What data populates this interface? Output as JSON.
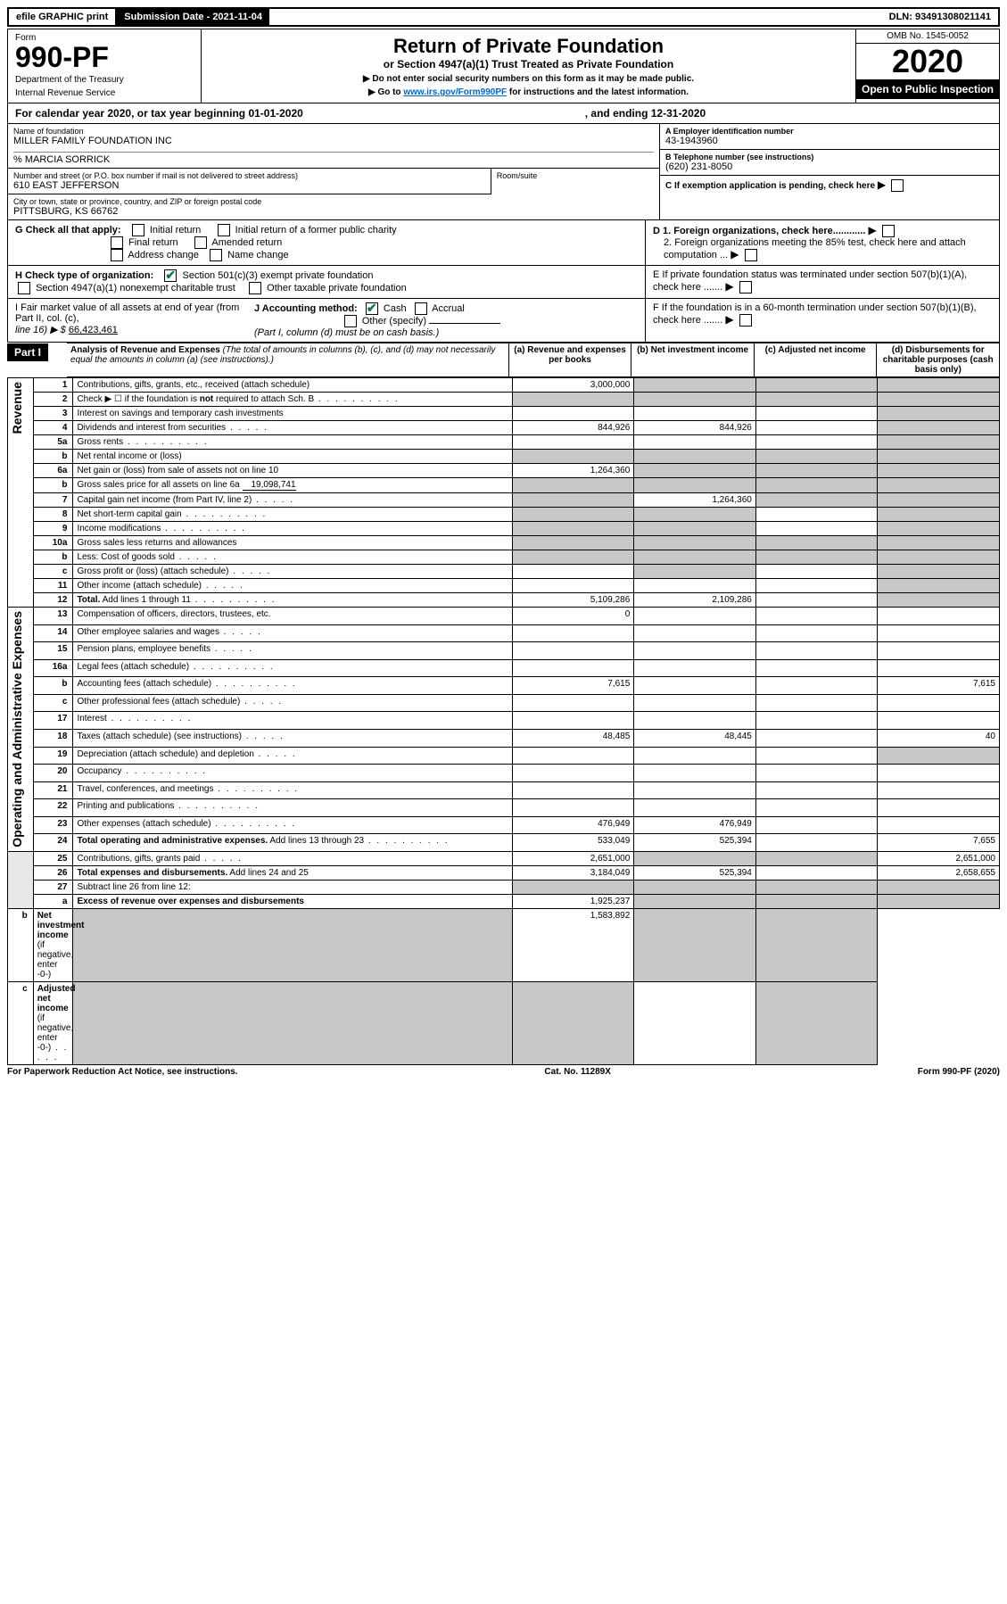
{
  "topbar": {
    "efile": "efile GRAPHIC print",
    "submission_label": "Submission Date - 2021-11-04",
    "dln": "DLN: 93491308021141"
  },
  "header": {
    "form_label": "Form",
    "form_number": "990-PF",
    "dept1": "Department of the Treasury",
    "dept2": "Internal Revenue Service",
    "title": "Return of Private Foundation",
    "subtitle": "or Section 4947(a)(1) Trust Treated as Private Foundation",
    "note1": "▶ Do not enter social security numbers on this form as it may be made public.",
    "note2_pre": "▶ Go to ",
    "note2_link": "www.irs.gov/Form990PF",
    "note2_post": " for instructions and the latest information.",
    "omb": "OMB No. 1545-0052",
    "year": "2020",
    "inspection": "Open to Public Inspection"
  },
  "cy": {
    "text_a": "For calendar year 2020, or tax year beginning 01-01-2020",
    "text_b": ", and ending 12-31-2020"
  },
  "info": {
    "name_label": "Name of foundation",
    "name": "MILLER FAMILY FOUNDATION INC",
    "co": "% MARCIA SORRICK",
    "addr_label": "Number and street (or P.O. box number if mail is not delivered to street address)",
    "addr": "610 EAST JEFFERSON",
    "room_label": "Room/suite",
    "city_label": "City or town, state or province, country, and ZIP or foreign postal code",
    "city": "PITTSBURG, KS  66762",
    "ein_label": "A Employer identification number",
    "ein": "43-1943960",
    "phone_label": "B Telephone number (see instructions)",
    "phone": "(620) 231-8050",
    "c_label": "C If exemption application is pending, check here",
    "d1": "D 1. Foreign organizations, check here............",
    "d2": "2. Foreign organizations meeting the 85% test, check here and attach computation ...",
    "e": "E  If private foundation status was terminated under section 507(b)(1)(A), check here .......",
    "f": "F  If the foundation is in a 60-month termination under section 507(b)(1)(B), check here ......."
  },
  "g": {
    "label": "G Check all that apply:",
    "o1": "Initial return",
    "o2": "Initial return of a former public charity",
    "o3": "Final return",
    "o4": "Amended return",
    "o5": "Address change",
    "o6": "Name change"
  },
  "h": {
    "label": "H Check type of organization:",
    "o1": "Section 501(c)(3) exempt private foundation",
    "o2": "Section 4947(a)(1) nonexempt charitable trust",
    "o3": "Other taxable private foundation"
  },
  "i": {
    "label_a": "I Fair market value of all assets at end of year (from Part II, col. (c),",
    "label_b": "line 16) ▶ $",
    "value": "66,423,461"
  },
  "j": {
    "label": "J Accounting method:",
    "o1": "Cash",
    "o2": "Accrual",
    "o3": "Other (specify)",
    "note": "(Part I, column (d) must be on cash basis.)"
  },
  "part1": {
    "label": "Part I",
    "title": "Analysis of Revenue and Expenses",
    "sub": "(The total of amounts in columns (b), (c), and (d) may not necessarily equal the amounts in column (a) (see instructions).)",
    "col_a": "(a)   Revenue and expenses per books",
    "col_b": "(b)   Net investment income",
    "col_c": "(c)   Adjusted net income",
    "col_d": "(d)   Disbursements for charitable purposes (cash basis only)"
  },
  "sections": {
    "revenue": "Revenue",
    "opex": "Operating and Administrative Expenses"
  },
  "rows": [
    {
      "n": "1",
      "t": "Contributions, gifts, grants, etc., received (attach schedule)",
      "a": "3,000,000",
      "b": "",
      "c": "",
      "d": "",
      "bsh": true,
      "csh": true,
      "dsh": true
    },
    {
      "n": "2",
      "t": "Check ▶ ☐ if the foundation is <b>not</b> required to attach Sch. B",
      "dots": true,
      "a": "",
      "b": "",
      "c": "",
      "d": "",
      "ash": true,
      "bsh": true,
      "csh": true,
      "dsh": true
    },
    {
      "n": "3",
      "t": "Interest on savings and temporary cash investments",
      "a": "",
      "b": "",
      "c": "",
      "d": "",
      "dsh": true
    },
    {
      "n": "4",
      "t": "Dividends and interest from securities",
      "dots": "s",
      "a": "844,926",
      "b": "844,926",
      "c": "",
      "d": "",
      "dsh": true
    },
    {
      "n": "5a",
      "t": "Gross rents",
      "dots": true,
      "a": "",
      "b": "",
      "c": "",
      "d": "",
      "dsh": true
    },
    {
      "n": "b",
      "t": "Net rental income or (loss)",
      "a": "",
      "b": "",
      "c": "",
      "d": "",
      "ash": true,
      "bsh": true,
      "csh": true,
      "dsh": true
    },
    {
      "n": "6a",
      "t": "Net gain or (loss) from sale of assets not on line 10",
      "a": "1,264,360",
      "b": "",
      "c": "",
      "d": "",
      "bsh": true,
      "csh": true,
      "dsh": true
    },
    {
      "n": "b",
      "t": "Gross sales price for all assets on line 6a",
      "inline": "19,098,741",
      "a": "",
      "b": "",
      "c": "",
      "d": "",
      "ash": true,
      "bsh": true,
      "csh": true,
      "dsh": true
    },
    {
      "n": "7",
      "t": "Capital gain net income (from Part IV, line 2)",
      "dots": "s",
      "a": "",
      "b": "1,264,360",
      "c": "",
      "d": "",
      "ash": true,
      "csh": true,
      "dsh": true
    },
    {
      "n": "8",
      "t": "Net short-term capital gain",
      "dots": true,
      "a": "",
      "b": "",
      "c": "",
      "d": "",
      "ash": true,
      "bsh": true,
      "dsh": true
    },
    {
      "n": "9",
      "t": "Income modifications",
      "dots": true,
      "a": "",
      "b": "",
      "c": "",
      "d": "",
      "ash": true,
      "bsh": true,
      "dsh": true
    },
    {
      "n": "10a",
      "t": "Gross sales less returns and allowances",
      "a": "",
      "b": "",
      "c": "",
      "d": "",
      "ash": true,
      "bsh": true,
      "csh": true,
      "dsh": true
    },
    {
      "n": "b",
      "t": "Less: Cost of goods sold",
      "dots": "s",
      "a": "",
      "b": "",
      "c": "",
      "d": "",
      "ash": true,
      "bsh": true,
      "csh": true,
      "dsh": true
    },
    {
      "n": "c",
      "t": "Gross profit or (loss) (attach schedule)",
      "dots": "s",
      "a": "",
      "b": "",
      "c": "",
      "d": "",
      "bsh": true,
      "dsh": true
    },
    {
      "n": "11",
      "t": "Other income (attach schedule)",
      "dots": "s",
      "a": "",
      "b": "",
      "c": "",
      "d": "",
      "dsh": true
    },
    {
      "n": "12",
      "t": "<b>Total.</b> Add lines 1 through 11",
      "dots": true,
      "a": "5,109,286",
      "b": "2,109,286",
      "c": "",
      "d": "",
      "dsh": true
    },
    {
      "n": "13",
      "t": "Compensation of officers, directors, trustees, etc.",
      "a": "0",
      "b": "",
      "c": "",
      "d": ""
    },
    {
      "n": "14",
      "t": "Other employee salaries and wages",
      "dots": "s",
      "a": "",
      "b": "",
      "c": "",
      "d": ""
    },
    {
      "n": "15",
      "t": "Pension plans, employee benefits",
      "dots": "s",
      "a": "",
      "b": "",
      "c": "",
      "d": ""
    },
    {
      "n": "16a",
      "t": "Legal fees (attach schedule)",
      "dots": true,
      "a": "",
      "b": "",
      "c": "",
      "d": ""
    },
    {
      "n": "b",
      "t": "Accounting fees (attach schedule)",
      "dots": true,
      "a": "7,615",
      "b": "",
      "c": "",
      "d": "7,615"
    },
    {
      "n": "c",
      "t": "Other professional fees (attach schedule)",
      "dots": "s",
      "a": "",
      "b": "",
      "c": "",
      "d": ""
    },
    {
      "n": "17",
      "t": "Interest",
      "dots": true,
      "a": "",
      "b": "",
      "c": "",
      "d": ""
    },
    {
      "n": "18",
      "t": "Taxes (attach schedule) (see instructions)",
      "dots": "s",
      "a": "48,485",
      "b": "48,445",
      "c": "",
      "d": "40"
    },
    {
      "n": "19",
      "t": "Depreciation (attach schedule) and depletion",
      "dots": "s",
      "a": "",
      "b": "",
      "c": "",
      "d": "",
      "dsh": true
    },
    {
      "n": "20",
      "t": "Occupancy",
      "dots": true,
      "a": "",
      "b": "",
      "c": "",
      "d": ""
    },
    {
      "n": "21",
      "t": "Travel, conferences, and meetings",
      "dots": true,
      "a": "",
      "b": "",
      "c": "",
      "d": ""
    },
    {
      "n": "22",
      "t": "Printing and publications",
      "dots": true,
      "a": "",
      "b": "",
      "c": "",
      "d": ""
    },
    {
      "n": "23",
      "t": "Other expenses (attach schedule)",
      "dots": true,
      "a": "476,949",
      "b": "476,949",
      "c": "",
      "d": ""
    },
    {
      "n": "24",
      "t": "<b>Total operating and administrative expenses.</b> Add lines 13 through 23",
      "dots": true,
      "a": "533,049",
      "b": "525,394",
      "c": "",
      "d": "7,655"
    },
    {
      "n": "25",
      "t": "Contributions, gifts, grants paid",
      "dots": "s",
      "a": "2,651,000",
      "b": "",
      "c": "",
      "d": "2,651,000",
      "bsh": true,
      "csh": true
    },
    {
      "n": "26",
      "t": "<b>Total expenses and disbursements.</b> Add lines 24 and 25",
      "a": "3,184,049",
      "b": "525,394",
      "c": "",
      "d": "2,658,655"
    },
    {
      "n": "27",
      "t": "Subtract line 26 from line 12:",
      "a": "",
      "b": "",
      "c": "",
      "d": "",
      "ash": true,
      "bsh": true,
      "csh": true,
      "dsh": true
    },
    {
      "n": "a",
      "t": "<b>Excess of revenue over expenses and disbursements</b>",
      "a": "1,925,237",
      "b": "",
      "c": "",
      "d": "",
      "bsh": true,
      "csh": true,
      "dsh": true
    },
    {
      "n": "b",
      "t": "<b>Net investment income</b> (if negative, enter -0-)",
      "a": "",
      "b": "1,583,892",
      "c": "",
      "d": "",
      "ash": true,
      "csh": true,
      "dsh": true
    },
    {
      "n": "c",
      "t": "<b>Adjusted net income</b> (if negative, enter -0-)",
      "dots": "s",
      "a": "",
      "b": "",
      "c": "",
      "d": "",
      "ash": true,
      "bsh": true,
      "dsh": true
    }
  ],
  "footer": {
    "left": "For Paperwork Reduction Act Notice, see instructions.",
    "center": "Cat. No. 11289X",
    "right": "Form 990-PF (2020)"
  }
}
